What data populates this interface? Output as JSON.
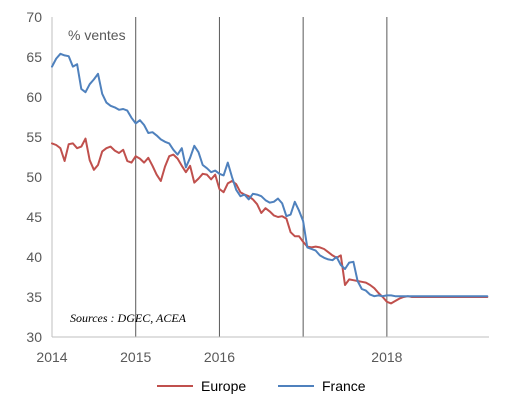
{
  "chart_data": {
    "type": "line",
    "title": "",
    "unit_label": "% ventes",
    "source": "Sources : DGEC, ACEA",
    "xlim": [
      2014.0,
      2019.22
    ],
    "ylim": [
      30,
      70
    ],
    "y_ticks": [
      30,
      35,
      40,
      45,
      50,
      55,
      60,
      65,
      70
    ],
    "x_ticks": [
      2014,
      2015,
      2016,
      2017,
      2018
    ],
    "x_tick_labels": [
      "2014",
      "2015",
      "2016",
      "",
      "2018"
    ],
    "vertical_gridlines_at": [
      2015,
      2016,
      2017,
      2018
    ],
    "horizontal_grid": false,
    "legend_position": "bottom",
    "series": [
      {
        "name": "Europe",
        "color": "#c0504d",
        "x": [
          2014.0,
          2014.05,
          2014.1,
          2014.15,
          2014.2,
          2014.25,
          2014.3,
          2014.35,
          2014.4,
          2014.45,
          2014.5,
          2014.55,
          2014.6,
          2014.65,
          2014.7,
          2014.75,
          2014.8,
          2014.85,
          2014.9,
          2014.95,
          2015.0,
          2015.05,
          2015.1,
          2015.15,
          2015.2,
          2015.25,
          2015.3,
          2015.35,
          2015.4,
          2015.45,
          2015.5,
          2015.55,
          2015.6,
          2015.65,
          2015.7,
          2015.75,
          2015.8,
          2015.85,
          2015.9,
          2015.95,
          2016.0,
          2016.05,
          2016.1,
          2016.15,
          2016.2,
          2016.25,
          2016.3,
          2016.35,
          2016.4,
          2016.45,
          2016.5,
          2016.55,
          2016.6,
          2016.65,
          2016.7,
          2016.75,
          2016.8,
          2016.85,
          2016.9,
          2016.95,
          2017.0,
          2017.05,
          2017.1,
          2017.15,
          2017.2,
          2017.25,
          2017.3,
          2017.35,
          2017.4,
          2017.45,
          2017.5,
          2017.55,
          2017.6,
          2017.65,
          2017.7,
          2017.75,
          2017.8,
          2017.85,
          2017.9,
          2017.95,
          2018.0,
          2018.05,
          2018.1,
          2018.15,
          2018.2,
          2018.25,
          2018.3,
          2018.35,
          2018.4,
          2018.45,
          2018.5,
          2018.55,
          2018.6,
          2018.65,
          2018.7,
          2018.75,
          2018.8,
          2018.85,
          2018.9,
          2018.95,
          2019.0,
          2019.05,
          2019.1,
          2019.15,
          2019.2
        ],
        "values": [
          54.2,
          54.0,
          53.6,
          52.0,
          54.1,
          54.2,
          53.6,
          53.8,
          54.8,
          52.1,
          50.9,
          51.5,
          53.2,
          53.6,
          53.8,
          53.3,
          53.0,
          53.4,
          52.0,
          51.8,
          52.6,
          52.3,
          51.8,
          52.4,
          51.4,
          50.3,
          49.5,
          51.3,
          52.6,
          52.8,
          52.3,
          51.4,
          50.6,
          51.4,
          49.3,
          49.8,
          50.4,
          50.3,
          49.7,
          50.3,
          48.5,
          48.1,
          49.2,
          49.5,
          49.1,
          48.1,
          47.8,
          47.6,
          47.2,
          46.6,
          45.5,
          46.1,
          45.7,
          45.2,
          45.0,
          45.1,
          44.8,
          43.1,
          42.6,
          42.6,
          41.9,
          41.3,
          41.2,
          41.3,
          41.2,
          41.0,
          40.6,
          40.2,
          39.9,
          40.2,
          36.5,
          37.2,
          37.1,
          37.0,
          36.9,
          36.8,
          36.5,
          36.1,
          35.5,
          35.0,
          34.4,
          34.2,
          34.5,
          34.8,
          35.0,
          35.1,
          35.0,
          35.0,
          35.0,
          35.0,
          35.0,
          35.0,
          35.0,
          35.0,
          35.0,
          35.0,
          35.0,
          35.0,
          35.0,
          35.0,
          35.0,
          35.0,
          35.0,
          35.0,
          35.0
        ]
      },
      {
        "name": "France",
        "color": "#4f81bd",
        "x": [
          2014.0,
          2014.05,
          2014.1,
          2014.15,
          2014.2,
          2014.25,
          2014.3,
          2014.35,
          2014.4,
          2014.45,
          2014.5,
          2014.55,
          2014.6,
          2014.65,
          2014.7,
          2014.75,
          2014.8,
          2014.85,
          2014.9,
          2014.95,
          2015.0,
          2015.05,
          2015.1,
          2015.15,
          2015.2,
          2015.25,
          2015.3,
          2015.35,
          2015.4,
          2015.45,
          2015.5,
          2015.55,
          2015.6,
          2015.65,
          2015.7,
          2015.75,
          2015.8,
          2015.85,
          2015.9,
          2015.95,
          2016.0,
          2016.05,
          2016.1,
          2016.15,
          2016.2,
          2016.25,
          2016.3,
          2016.35,
          2016.4,
          2016.45,
          2016.5,
          2016.55,
          2016.6,
          2016.65,
          2016.7,
          2016.75,
          2016.8,
          2016.85,
          2016.9,
          2016.95,
          2017.0,
          2017.05,
          2017.1,
          2017.15,
          2017.2,
          2017.25,
          2017.3,
          2017.35,
          2017.4,
          2017.45,
          2017.5,
          2017.55,
          2017.6,
          2017.65,
          2017.7,
          2017.75,
          2017.8,
          2017.85,
          2017.9,
          2017.95,
          2018.0,
          2018.05,
          2018.1,
          2018.15,
          2018.2,
          2018.25,
          2018.3,
          2018.35,
          2018.4,
          2018.45,
          2018.5,
          2018.55,
          2018.6,
          2018.65,
          2018.7,
          2018.75,
          2018.8,
          2018.85,
          2018.9,
          2018.95,
          2019.0,
          2019.05,
          2019.1,
          2019.15,
          2019.2
        ],
        "values": [
          63.8,
          64.8,
          65.4,
          65.2,
          65.1,
          63.8,
          64.1,
          61.0,
          60.6,
          61.6,
          62.2,
          62.9,
          60.4,
          59.3,
          58.9,
          58.7,
          58.4,
          58.5,
          58.3,
          57.4,
          56.7,
          57.1,
          56.5,
          55.5,
          55.6,
          55.2,
          54.7,
          54.4,
          54.2,
          53.4,
          52.8,
          53.6,
          51.2,
          52.4,
          53.9,
          53.1,
          51.5,
          51.1,
          50.6,
          50.8,
          50.4,
          50.2,
          51.8,
          50.0,
          48.4,
          47.6,
          47.8,
          47.2,
          47.9,
          47.8,
          47.6,
          47.1,
          46.8,
          46.9,
          47.3,
          46.7,
          45.1,
          45.3,
          46.9,
          45.8,
          44.5,
          41.2,
          41.0,
          40.8,
          40.2,
          39.9,
          39.7,
          39.6,
          40.0,
          39.0,
          38.5,
          39.3,
          39.4,
          37.0,
          36.0,
          35.8,
          35.3,
          35.1,
          35.2,
          35.1,
          35.2,
          35.2,
          35.1,
          35.1,
          35.1,
          35.1,
          35.1,
          35.1,
          35.1,
          35.1,
          35.1,
          35.1,
          35.1,
          35.1,
          35.1,
          35.1,
          35.1,
          35.1,
          35.1,
          35.1,
          35.1,
          35.1,
          35.1,
          35.1,
          35.1
        ]
      }
    ]
  }
}
